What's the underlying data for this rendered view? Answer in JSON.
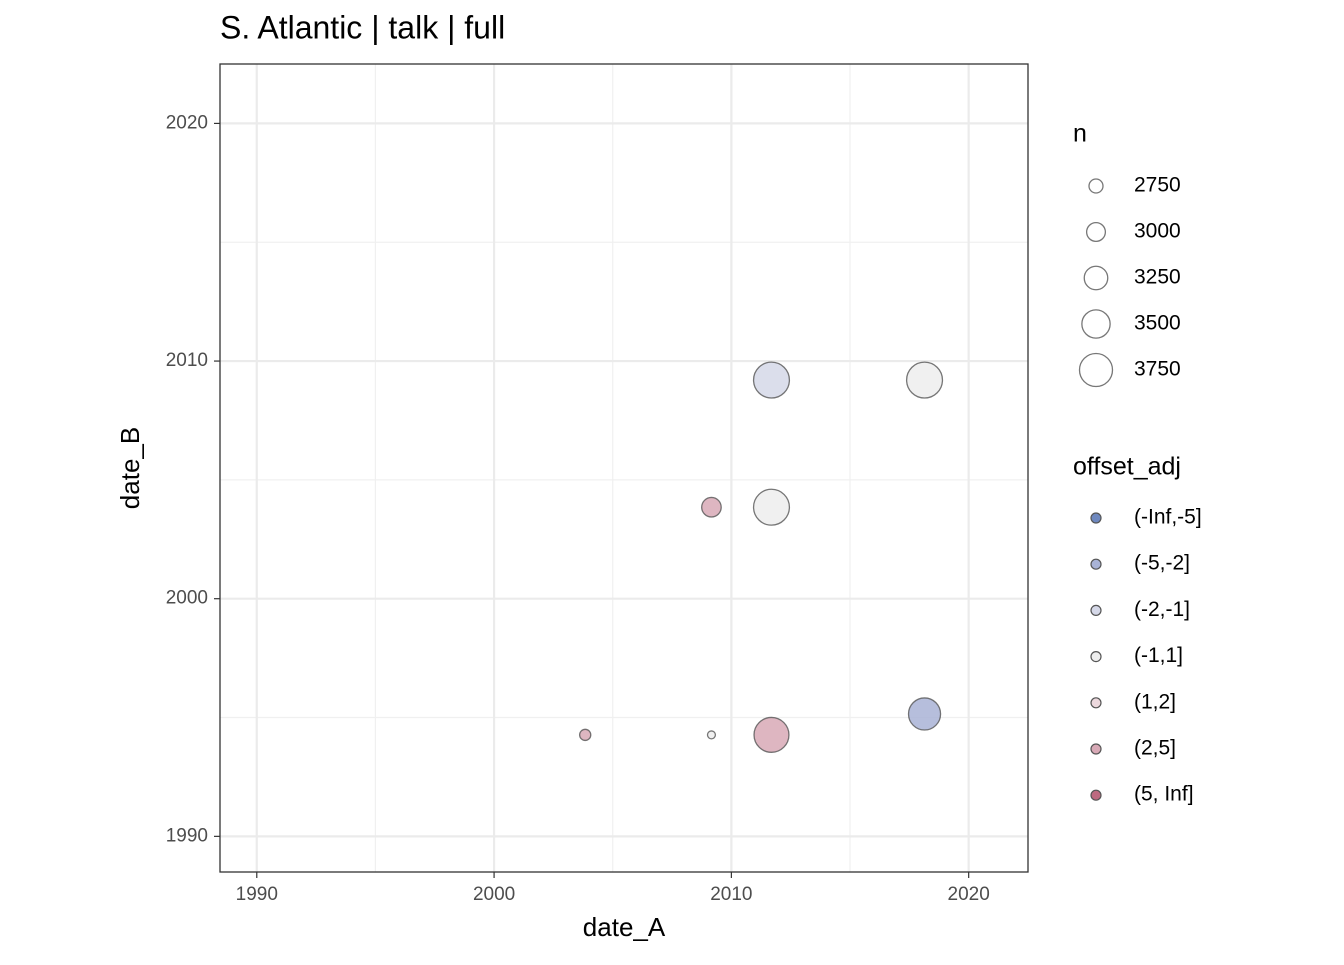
{
  "chart_data": {
    "type": "scatter",
    "title": "S. Atlantic | talk | full",
    "x_label": "date_A",
    "y_label": "date_B",
    "x": [
      2011.69,
      2018.14,
      2009.16,
      2011.69,
      2003.84,
      2009.16,
      2011.69,
      2018.14
    ],
    "y": [
      2009.2,
      2009.2,
      2003.85,
      2003.85,
      1994.27,
      1994.27,
      1994.27,
      1995.15
    ],
    "size": [
      3900,
      3900,
      3040,
      3900,
      2600,
      2430,
      3850,
      3700
    ],
    "group": [
      "(-2,-1]",
      "(-1,1]",
      "(2,5]",
      "(-1,1]",
      "(2,5]",
      "(-1,1]",
      "(2,5]",
      "(-5,-2]"
    ],
    "xlim": [
      1988.45,
      2022.5
    ],
    "ylim": [
      1988.5,
      2022.5
    ],
    "xticks": [
      1990,
      2000,
      2010,
      2020
    ],
    "yticks": [
      1990,
      2000,
      2010,
      2020
    ],
    "grid": true,
    "size_legend": {
      "title": "n",
      "breaks": [
        2750,
        3000,
        3250,
        3500,
        3750
      ]
    },
    "color_legend": {
      "title": "offset_adj",
      "labels": [
        "(-Inf,-5]",
        "(-5,-2]",
        "(-2,-1]",
        "(-1,1]",
        "(1,2]",
        "(2,5]",
        "(5, Inf]"
      ],
      "colors": [
        "#6e88bf",
        "#a9b3d6",
        "#d5d8e8",
        "#ededed",
        "#ecd8dd",
        "#d8a9b6",
        "#bd6a80"
      ]
    }
  }
}
